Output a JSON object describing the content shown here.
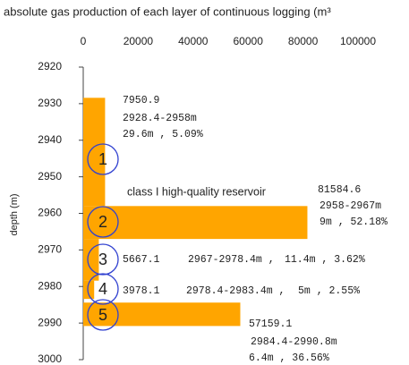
{
  "chart_data": {
    "type": "bar",
    "orientation": "horizontal",
    "title": "absolute gas production of each layer of continuous logging (m³",
    "ylabel": "depth (m)",
    "annotation": "class I high-quality reservoir",
    "xlim": [
      0,
      100000
    ],
    "xticks": [
      0,
      20000,
      40000,
      60000,
      80000,
      100000
    ],
    "ylim": [
      2920,
      3000
    ],
    "y_reversed": true,
    "yticks": [
      2920,
      2930,
      2940,
      2950,
      2960,
      2970,
      2980,
      2990,
      3000
    ],
    "color": "#ffa500",
    "label_color": "#e03030",
    "circle_color": "#3040d0",
    "layers": [
      1,
      2,
      3,
      4,
      5
    ],
    "depth_top": [
      2928.4,
      2958,
      2967,
      2978.4,
      2984.4
    ],
    "depth_bottom": [
      2958,
      2967,
      2978.4,
      2983.4,
      2990.8
    ],
    "values": [
      7950.9,
      81584.6,
      5667.1,
      3978.1,
      57159.1
    ],
    "interval_labels": [
      "2928.4-2958m",
      "2958-2967m",
      "2967-2978.4m ,",
      "2978.4-2983.4m ,",
      "2984.4-2990.8m"
    ],
    "detail_labels": [
      "29.6m , 5.09%",
      "9m , 52.18%",
      "11.4m , 3.62%",
      "5m , 2.55%",
      "6.4m , 36.56%"
    ]
  }
}
